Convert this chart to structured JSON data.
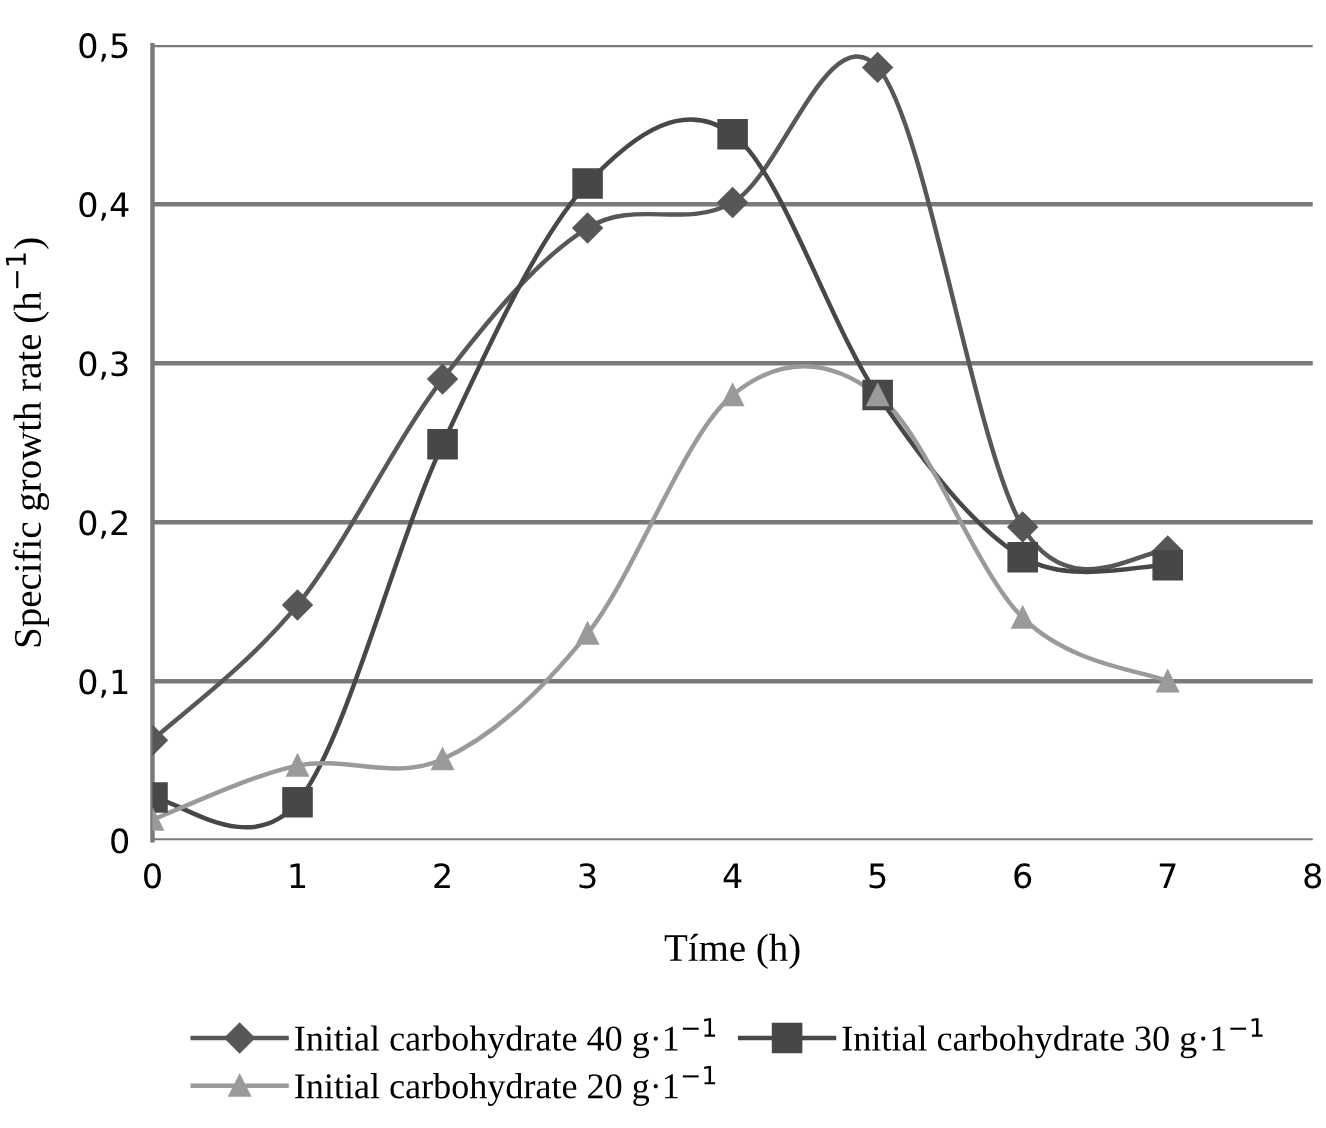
{
  "chart_data": {
    "type": "line",
    "xlabel": "Tíme (h)",
    "ylabel": "Specific growth rate (h$^{−1}$)",
    "x": [
      0,
      1,
      2,
      3,
      4,
      5,
      6,
      7
    ],
    "series": [
      {
        "name": "Initial carbohydrate 40 g·1$^{−1}$",
        "color": "#575757",
        "marker": "diamond",
        "values": [
          0.063,
          0.148,
          0.29,
          0.385,
          0.401,
          0.486,
          0.197,
          0.182
        ]
      },
      {
        "name": "Initial carbohydrate 30 g·1$^{−1}$",
        "color": "#474747",
        "marker": "square",
        "values": [
          0.027,
          0.024,
          0.249,
          0.413,
          0.444,
          0.28,
          0.178,
          0.173
        ]
      },
      {
        "name": "Initial carbohydrate 20 g·1$^{−1}$",
        "color": "#9a9a9a",
        "marker": "triangle",
        "values": [
          0.013,
          0.047,
          0.051,
          0.13,
          0.28,
          0.28,
          0.14,
          0.1
        ]
      }
    ],
    "xlim": [
      0,
      8
    ],
    "xticks": [
      0,
      1,
      2,
      3,
      4,
      5,
      6,
      7,
      8
    ],
    "ylim": [
      0,
      0.5
    ],
    "yticks": [
      {
        "value": 0,
        "label": "0"
      },
      {
        "value": 0.1,
        "label": "0,1"
      },
      {
        "value": 0.2,
        "label": "0,2"
      },
      {
        "value": 0.3,
        "label": "0,3"
      },
      {
        "value": 0.4,
        "label": "0,4"
      },
      {
        "value": 0.5,
        "label": "0,5"
      }
    ],
    "grid": "y",
    "legend": "bottom",
    "line_style": "solid"
  }
}
